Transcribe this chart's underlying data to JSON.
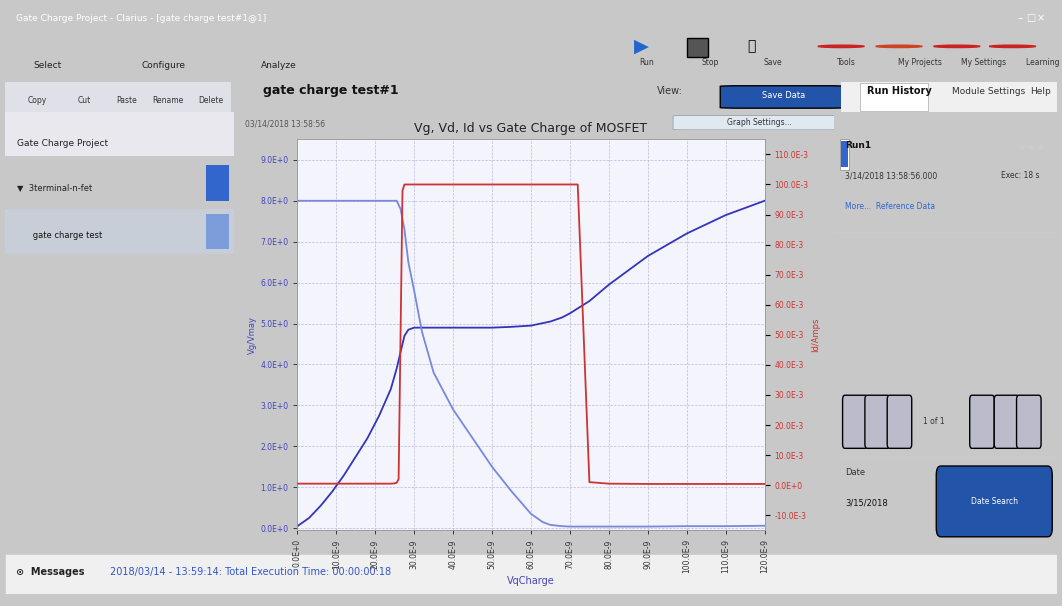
{
  "title": "Vg, Vd, Id vs Gate Charge of MOSFET",
  "xlabel": "VqCharge",
  "ylabel_left": "Vg/Vmay",
  "ylabel_right": "Id/Amps",
  "xlim": [
    0,
    1.2e-07
  ],
  "ylim_left": [
    -0.05,
    9.5
  ],
  "ylim_right": [
    -0.015,
    0.115
  ],
  "xticks": [
    0,
    1e-08,
    2e-08,
    3e-08,
    4e-08,
    5e-08,
    6e-08,
    7e-08,
    8e-08,
    9e-08,
    1e-07,
    1.1e-07,
    1.2e-07
  ],
  "xtick_labels": [
    "0.0E+0",
    "10.0E-9",
    "20.0E-9",
    "30.0E-9",
    "40.0E-9",
    "50.0E-9",
    "60.0E-9",
    "70.0E-9",
    "80.0E-9",
    "90.0E-9",
    "100.0E-9",
    "110.0E-9",
    "120.0E-9"
  ],
  "yticks_left": [
    0,
    1.0,
    2.0,
    3.0,
    4.0,
    5.0,
    6.0,
    7.0,
    8.0,
    9.0
  ],
  "ytick_labels_left": [
    "0.0E+0",
    "1.0E+0",
    "2.0E+0",
    "3.0E+0",
    "4.0E+0",
    "5.0E+0",
    "6.0E+0",
    "7.0E+0",
    "8.0E+0",
    "9.0E+0"
  ],
  "yticks_right": [
    -0.01,
    0.0,
    0.01,
    0.02,
    0.03,
    0.04,
    0.05,
    0.06,
    0.07,
    0.08,
    0.09,
    0.1,
    0.11
  ],
  "ytick_labels_right": [
    "-10.0E-3",
    "0.0E+0",
    "10.0E-3",
    "20.0E-3",
    "30.0E-3",
    "40.0E-3",
    "50.0E-3",
    "60.0E-3",
    "70.0E-3",
    "80.0E-3",
    "90.0E-3",
    "100.0E-3",
    "110.0E-3"
  ],
  "chart_bg": "#f4f4fc",
  "grid_color": "#bbbbdd",
  "vgs_color": "#3333bb",
  "vds_color": "#7788dd",
  "id_color": "#cc3333",
  "win_bg": "#dcdcdc",
  "toolbar_bg": "#f0f0f0",
  "sidebar_bg": "#f5f5f5",
  "right_panel_bg": "#f5f5f5",
  "vgs_x": [
    0,
    3e-09,
    6e-09,
    9e-09,
    1.2e-08,
    1.5e-08,
    1.8e-08,
    2.1e-08,
    2.4e-08,
    2.55e-08,
    2.65e-08,
    2.75e-08,
    2.85e-08,
    3e-08,
    3.5e-08,
    4e-08,
    4.5e-08,
    5e-08,
    5.5e-08,
    6e-08,
    6.5e-08,
    6.8e-08,
    7e-08,
    7.5e-08,
    8e-08,
    9e-08,
    1e-07,
    1.1e-07,
    1.2e-07
  ],
  "vgs_y": [
    0.05,
    0.25,
    0.55,
    0.9,
    1.3,
    1.75,
    2.2,
    2.75,
    3.4,
    3.9,
    4.3,
    4.7,
    4.85,
    4.9,
    4.9,
    4.9,
    4.9,
    4.9,
    4.92,
    4.95,
    5.05,
    5.15,
    5.25,
    5.55,
    5.95,
    6.65,
    7.2,
    7.65,
    8.0
  ],
  "vds_x": [
    0,
    3e-09,
    6e-09,
    9e-09,
    1.2e-08,
    1.5e-08,
    1.8e-08,
    2.1e-08,
    2.4e-08,
    2.55e-08,
    2.65e-08,
    2.75e-08,
    2.85e-08,
    3e-08,
    3.2e-08,
    3.5e-08,
    4e-08,
    4.5e-08,
    5e-08,
    5.5e-08,
    6e-08,
    6.3e-08,
    6.5e-08,
    6.8e-08,
    7e-08,
    7.2e-08,
    7.5e-08,
    8e-08,
    9e-08,
    1e-07,
    1.1e-07,
    1.2e-07
  ],
  "vds_y": [
    8.0,
    8.0,
    8.0,
    8.0,
    8.0,
    8.0,
    8.0,
    8.0,
    8.0,
    8.0,
    7.8,
    7.3,
    6.5,
    5.8,
    4.8,
    3.8,
    2.9,
    2.2,
    1.5,
    0.9,
    0.35,
    0.15,
    0.08,
    0.05,
    0.04,
    0.04,
    0.04,
    0.04,
    0.04,
    0.05,
    0.05,
    0.06
  ],
  "id_x": [
    0,
    3e-09,
    6e-09,
    9e-09,
    1.2e-08,
    1.5e-08,
    1.8e-08,
    2e-08,
    2.2e-08,
    2.4e-08,
    2.5e-08,
    2.55e-08,
    2.6e-08,
    2.65e-08,
    2.7e-08,
    2.75e-08,
    2.85e-08,
    3e-08,
    3.5e-08,
    4e-08,
    5e-08,
    6e-08,
    6.5e-08,
    7e-08,
    7.2e-08,
    7.5e-08,
    8e-08,
    9e-08,
    1e-07,
    1.1e-07,
    1.2e-07
  ],
  "id_y": [
    0.0005,
    0.0005,
    0.0005,
    0.0005,
    0.0005,
    0.0005,
    0.0005,
    0.0005,
    0.0005,
    0.0005,
    0.0006,
    0.0008,
    0.002,
    0.05,
    0.098,
    0.1,
    0.1,
    0.1,
    0.1,
    0.1,
    0.1,
    0.1,
    0.1,
    0.1,
    0.1,
    0.001,
    0.0005,
    0.0004,
    0.0004,
    0.0004,
    0.0004
  ],
  "app_title": "Gate Charge Project - Clarius - [gate charge test#1@1]",
  "panel_title": "gate charge test#1",
  "project_label": "Gate Charge Project",
  "tree_item1": "3terminal-n-fet",
  "tree_item2": "gate charge test",
  "date_label": "03/14/2018 13:58:56",
  "run_history_label": "Run History",
  "run1_label": "Run1",
  "run1_date": "3/14/2018 13:58:56.000",
  "run1_exec": "Exec: 18 s",
  "more_label": "More...  Reference Data",
  "msg_label": "Messages",
  "msg_text": "2018/03/14 - 13:59:14: Total Execution Time: 00:00:00:18",
  "date_search_date": "3/15/2018",
  "date_search_day": "15"
}
